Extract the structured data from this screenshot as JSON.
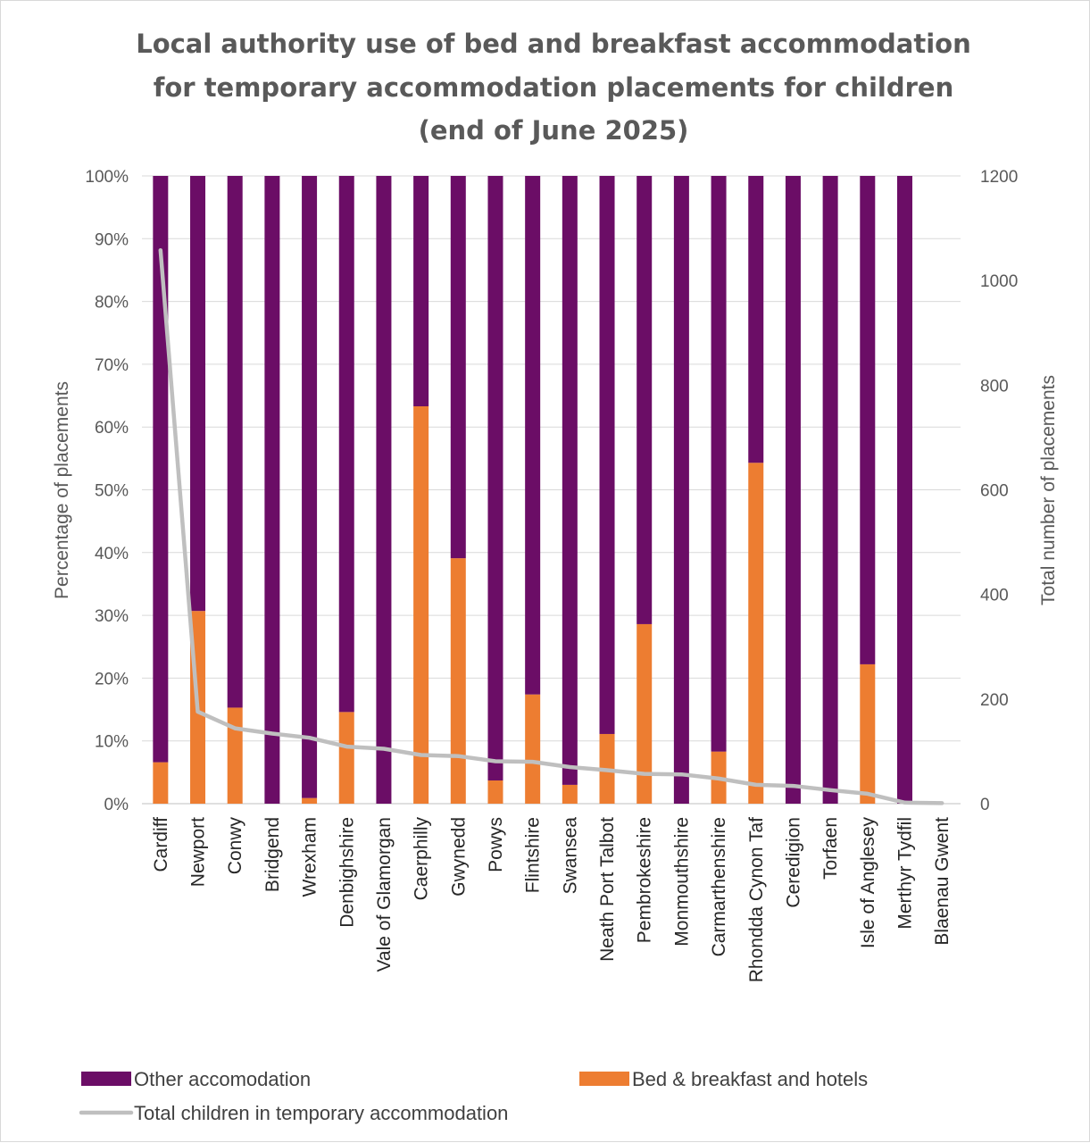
{
  "chart_data": {
    "type": "bar",
    "stacked": true,
    "title_lines": [
      "Local authority use of bed and breakfast accommodation",
      "for temporary accommodation placements for children",
      "(end of June 2025)"
    ],
    "ylabel": "Percentage of placements",
    "y2label": "Total number of placements",
    "ylim": [
      0,
      100
    ],
    "y2lim": [
      0,
      1200
    ],
    "yticks": [
      "0%",
      "10%",
      "20%",
      "30%",
      "40%",
      "50%",
      "60%",
      "70%",
      "80%",
      "90%",
      "100%"
    ],
    "y2ticks": [
      "0",
      "200",
      "400",
      "600",
      "800",
      "1000",
      "1200"
    ],
    "grid": true,
    "legend_position": "bottom",
    "categories": [
      "Cardiff",
      "Newport",
      "Conwy",
      "Bridgend",
      "Wrexham",
      "Denbighshire",
      "Vale of Glamorgan",
      "Caerphilly",
      "Gwynedd",
      "Powys",
      "Flintshire",
      "Swansea",
      "Neath Port Talbot",
      "Pembrokeshire",
      "Monmouthshire",
      "Carmarthenshire",
      "Rhondda Cynon Taf",
      "Ceredigion",
      "Torfaen",
      "Isle of Anglesey",
      "Merthyr Tydfil",
      "Blaenau Gwent"
    ],
    "series": [
      {
        "name": "Bed & breakfast and hotels",
        "type": "bar",
        "axis": "left",
        "color": "#ED7D31",
        "values": [
          6.6,
          30.7,
          15.3,
          0,
          0.9,
          14.6,
          0,
          63.3,
          39.1,
          3.7,
          17.4,
          3.0,
          11.1,
          28.6,
          0,
          8.3,
          54.3,
          0,
          0,
          22.2,
          0,
          0
        ]
      },
      {
        "name": "Other accomodation",
        "type": "bar",
        "axis": "left",
        "color": "#6B0D66",
        "values": [
          93.4,
          69.3,
          84.7,
          100,
          99.1,
          85.4,
          100,
          36.7,
          60.9,
          96.3,
          82.6,
          97.0,
          88.9,
          71.4,
          100,
          91.7,
          45.7,
          100,
          100,
          77.8,
          100,
          0
        ]
      },
      {
        "name": "Total children in temporary accommodation",
        "type": "line",
        "axis": "right",
        "color": "#BFBFBF",
        "values": [
          1058,
          176,
          144,
          134,
          126,
          109,
          105,
          93,
          91,
          81,
          80,
          70,
          64,
          57,
          56,
          48,
          36,
          34,
          26,
          19,
          2,
          1
        ]
      }
    ]
  }
}
